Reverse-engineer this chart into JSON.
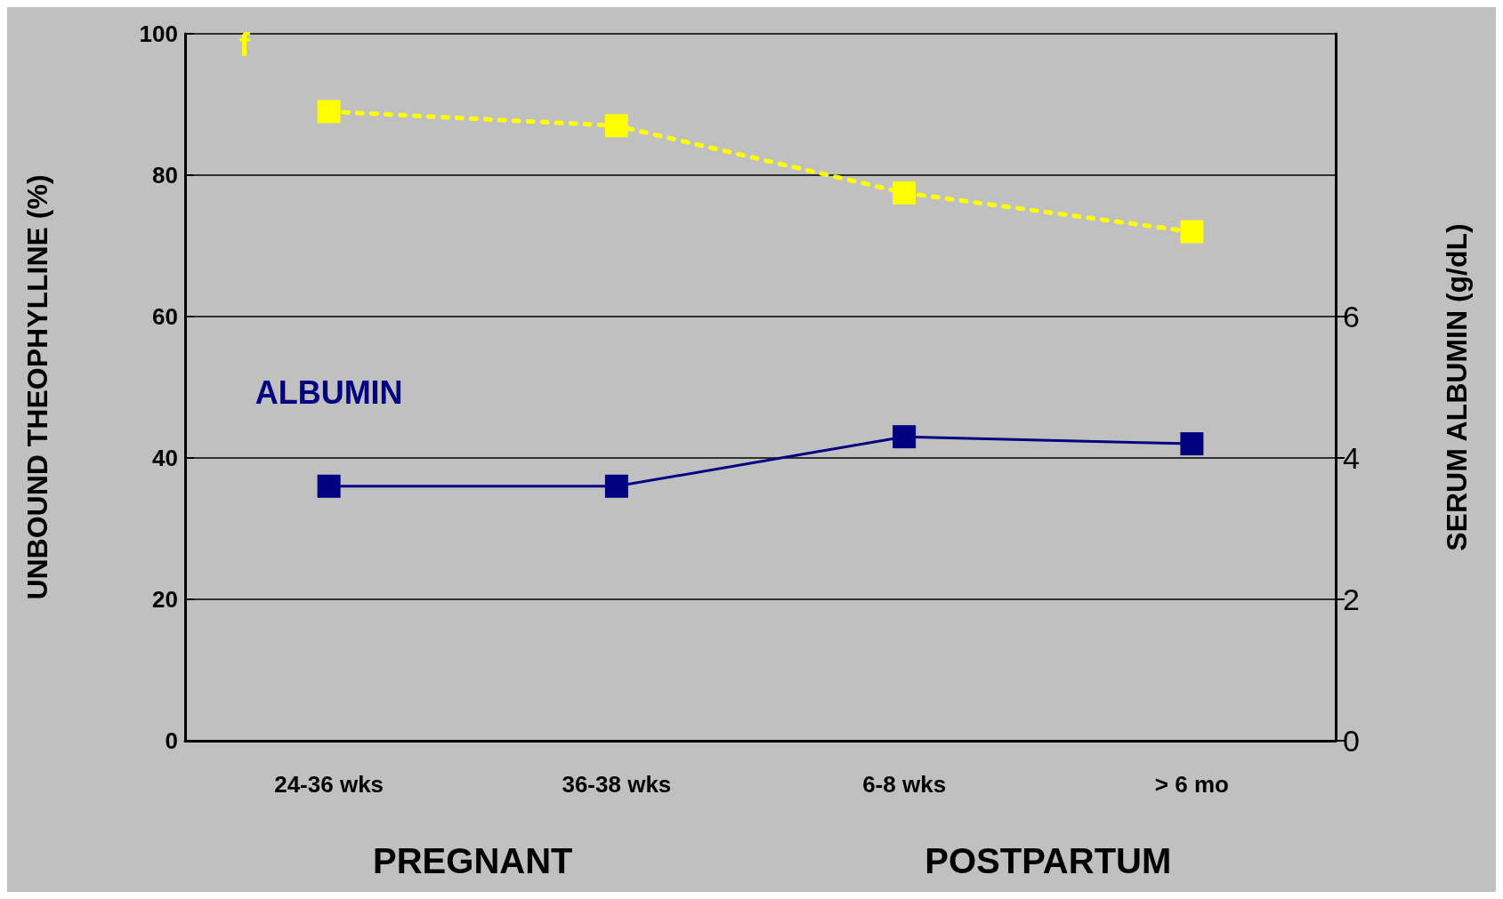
{
  "chart_data": {
    "type": "line",
    "categories": [
      "24-36 wks",
      "36-38 wks",
      "6-8 wks",
      "> 6 mo"
    ],
    "ylabel": "UNBOUND THEOPHYLLINE (%)",
    "y2label": "SERUM ALBUMIN (g/dL)",
    "series": [
      {
        "name": "f",
        "color": "#ffff00",
        "values": [
          89,
          87,
          77.5,
          72
        ],
        "line_style": "dashed"
      },
      {
        "name": "ALBUMIN",
        "color": "#000080",
        "values": [
          3.6,
          3.6,
          4.3,
          4.2
        ],
        "axis": "y2",
        "line_style": "solid"
      }
    ],
    "ylim": [
      0,
      100
    ],
    "yticks": [
      0,
      20,
      40,
      60,
      80,
      100
    ],
    "y2lim": [
      0,
      10
    ],
    "y2ticks": [
      0,
      2,
      4,
      6
    ],
    "annotations": [
      "PREGNANT",
      "POSTPARTUM"
    ],
    "grid": "y",
    "marker": "square",
    "legend": false
  }
}
